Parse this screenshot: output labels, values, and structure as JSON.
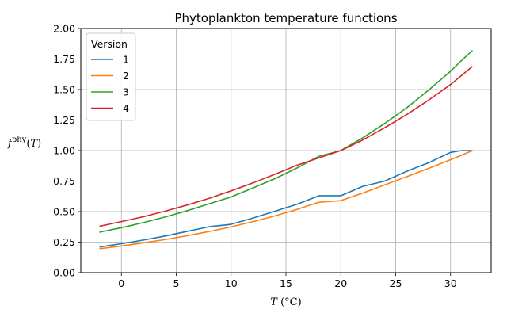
{
  "chart_data": {
    "type": "line",
    "title": "Phytoplankton temperature functions",
    "xlabel": "T (°C)",
    "ylabel": "f^phy(T)",
    "xlim": [
      -3.7,
      33.7
    ],
    "ylim": [
      0,
      2.0
    ],
    "xticks": [
      0,
      5,
      10,
      15,
      20,
      25,
      30
    ],
    "yticks": [
      0.0,
      0.25,
      0.5,
      0.75,
      1.0,
      1.25,
      1.5,
      1.75,
      2.0
    ],
    "grid": true,
    "legend": {
      "title": "Version",
      "placement": "top-left"
    },
    "x": [
      -2,
      0,
      2,
      4,
      6,
      8,
      10,
      12,
      14,
      16,
      18,
      20,
      22,
      24,
      26,
      28,
      30,
      31,
      32
    ],
    "series": [
      {
        "name": "1",
        "color": "#1f77b4",
        "values": [
          0.21,
          0.237,
          0.267,
          0.3,
          0.338,
          0.376,
          0.396,
          0.447,
          0.503,
          0.56,
          0.63,
          0.63,
          0.707,
          0.75,
          0.83,
          0.9,
          0.985,
          1.0,
          1.0
        ]
      },
      {
        "name": "2",
        "color": "#ff7f0e",
        "values": [
          0.196,
          0.218,
          0.244,
          0.271,
          0.302,
          0.337,
          0.375,
          0.418,
          0.465,
          0.518,
          0.577,
          0.59,
          0.652,
          0.719,
          0.786,
          0.854,
          0.925,
          0.962,
          1.0
        ]
      },
      {
        "name": "3",
        "color": "#2ca02c",
        "values": [
          0.331,
          0.368,
          0.41,
          0.456,
          0.507,
          0.564,
          0.62,
          0.694,
          0.77,
          0.857,
          0.953,
          1.0,
          1.104,
          1.222,
          1.35,
          1.495,
          1.65,
          1.738,
          1.82
        ]
      },
      {
        "name": "4",
        "color": "#d62728",
        "values": [
          0.38,
          0.418,
          0.458,
          0.504,
          0.554,
          0.609,
          0.67,
          0.735,
          0.806,
          0.88,
          0.94,
          1.0,
          1.087,
          1.187,
          1.295,
          1.413,
          1.541,
          1.615,
          1.69
        ]
      }
    ]
  }
}
